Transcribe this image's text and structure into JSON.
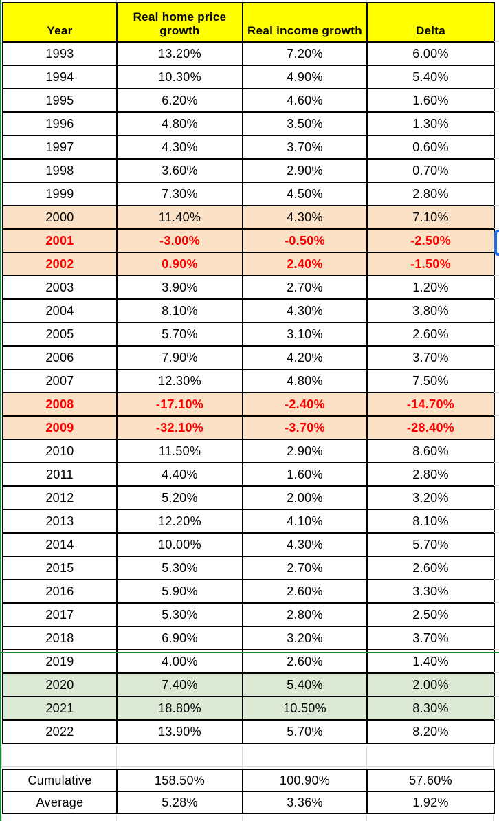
{
  "table": {
    "columns": [
      "Year",
      "Real home price growth",
      "Real income growth",
      "Delta"
    ],
    "rows": [
      {
        "year": "1993",
        "home": "13.20%",
        "income": "7.20%",
        "delta": "6.00%",
        "style": "plain"
      },
      {
        "year": "1994",
        "home": "10.30%",
        "income": "4.90%",
        "delta": "5.40%",
        "style": "plain"
      },
      {
        "year": "1995",
        "home": "6.20%",
        "income": "4.60%",
        "delta": "1.60%",
        "style": "plain"
      },
      {
        "year": "1996",
        "home": "4.80%",
        "income": "3.50%",
        "delta": "1.30%",
        "style": "plain"
      },
      {
        "year": "1997",
        "home": "4.30%",
        "income": "3.70%",
        "delta": "0.60%",
        "style": "plain"
      },
      {
        "year": "1998",
        "home": "3.60%",
        "income": "2.90%",
        "delta": "0.70%",
        "style": "plain"
      },
      {
        "year": "1999",
        "home": "7.30%",
        "income": "4.50%",
        "delta": "2.80%",
        "style": "plain"
      },
      {
        "year": "2000",
        "home": "11.40%",
        "income": "4.30%",
        "delta": "7.10%",
        "style": "peach"
      },
      {
        "year": "2001",
        "home": "-3.00%",
        "income": "-0.50%",
        "delta": "-2.50%",
        "style": "peach-negative"
      },
      {
        "year": "2002",
        "home": "0.90%",
        "income": "2.40%",
        "delta": "-1.50%",
        "style": "peach-negative"
      },
      {
        "year": "2003",
        "home": "3.90%",
        "income": "2.70%",
        "delta": "1.20%",
        "style": "plain"
      },
      {
        "year": "2004",
        "home": "8.10%",
        "income": "4.30%",
        "delta": "3.80%",
        "style": "plain"
      },
      {
        "year": "2005",
        "home": "5.70%",
        "income": "3.10%",
        "delta": "2.60%",
        "style": "plain"
      },
      {
        "year": "2006",
        "home": "7.90%",
        "income": "4.20%",
        "delta": "3.70%",
        "style": "plain"
      },
      {
        "year": "2007",
        "home": "12.30%",
        "income": "4.80%",
        "delta": "7.50%",
        "style": "plain"
      },
      {
        "year": "2008",
        "home": "-17.10%",
        "income": "-2.40%",
        "delta": "-14.70%",
        "style": "peach-negative"
      },
      {
        "year": "2009",
        "home": "-32.10%",
        "income": "-3.70%",
        "delta": "-28.40%",
        "style": "peach-negative"
      },
      {
        "year": "2010",
        "home": "11.50%",
        "income": "2.90%",
        "delta": "8.60%",
        "style": "plain"
      },
      {
        "year": "2011",
        "home": "4.40%",
        "income": "1.60%",
        "delta": "2.80%",
        "style": "plain"
      },
      {
        "year": "2012",
        "home": "5.20%",
        "income": "2.00%",
        "delta": "3.20%",
        "style": "plain"
      },
      {
        "year": "2013",
        "home": "12.20%",
        "income": "4.10%",
        "delta": "8.10%",
        "style": "plain"
      },
      {
        "year": "2014",
        "home": "10.00%",
        "income": "4.30%",
        "delta": "5.70%",
        "style": "plain"
      },
      {
        "year": "2015",
        "home": "5.30%",
        "income": "2.70%",
        "delta": "2.60%",
        "style": "plain"
      },
      {
        "year": "2016",
        "home": "5.90%",
        "income": "2.60%",
        "delta": "3.30%",
        "style": "plain"
      },
      {
        "year": "2017",
        "home": "5.30%",
        "income": "2.80%",
        "delta": "2.50%",
        "style": "plain"
      },
      {
        "year": "2018",
        "home": "6.90%",
        "income": "3.20%",
        "delta": "3.70%",
        "style": "plain"
      },
      {
        "year": "2019",
        "home": "4.00%",
        "income": "2.60%",
        "delta": "1.40%",
        "style": "plain"
      },
      {
        "year": "2020",
        "home": "7.40%",
        "income": "5.40%",
        "delta": "2.00%",
        "style": "green"
      },
      {
        "year": "2021",
        "home": "18.80%",
        "income": "10.50%",
        "delta": "8.30%",
        "style": "green"
      },
      {
        "year": "2022",
        "home": "13.90%",
        "income": "5.70%",
        "delta": "8.20%",
        "style": "plain"
      }
    ],
    "summary_rows": [
      {
        "label": "Cumulative",
        "home": "158.50%",
        "income": "100.90%",
        "delta": "57.60%"
      },
      {
        "label": "Average",
        "home": "5.28%",
        "income": "3.36%",
        "delta": "1.92%"
      }
    ]
  },
  "colors": {
    "header_bg": "#FFFF00",
    "highlight_peach": "#FBE2C6",
    "highlight_green": "#DCE9D5",
    "negative_text": "#FF0000",
    "cell_border": "#000000",
    "faint_gridline": "#D9D9D9",
    "page_break_line": "#1F8A3D",
    "selection_blue": "#1C6FE8"
  }
}
